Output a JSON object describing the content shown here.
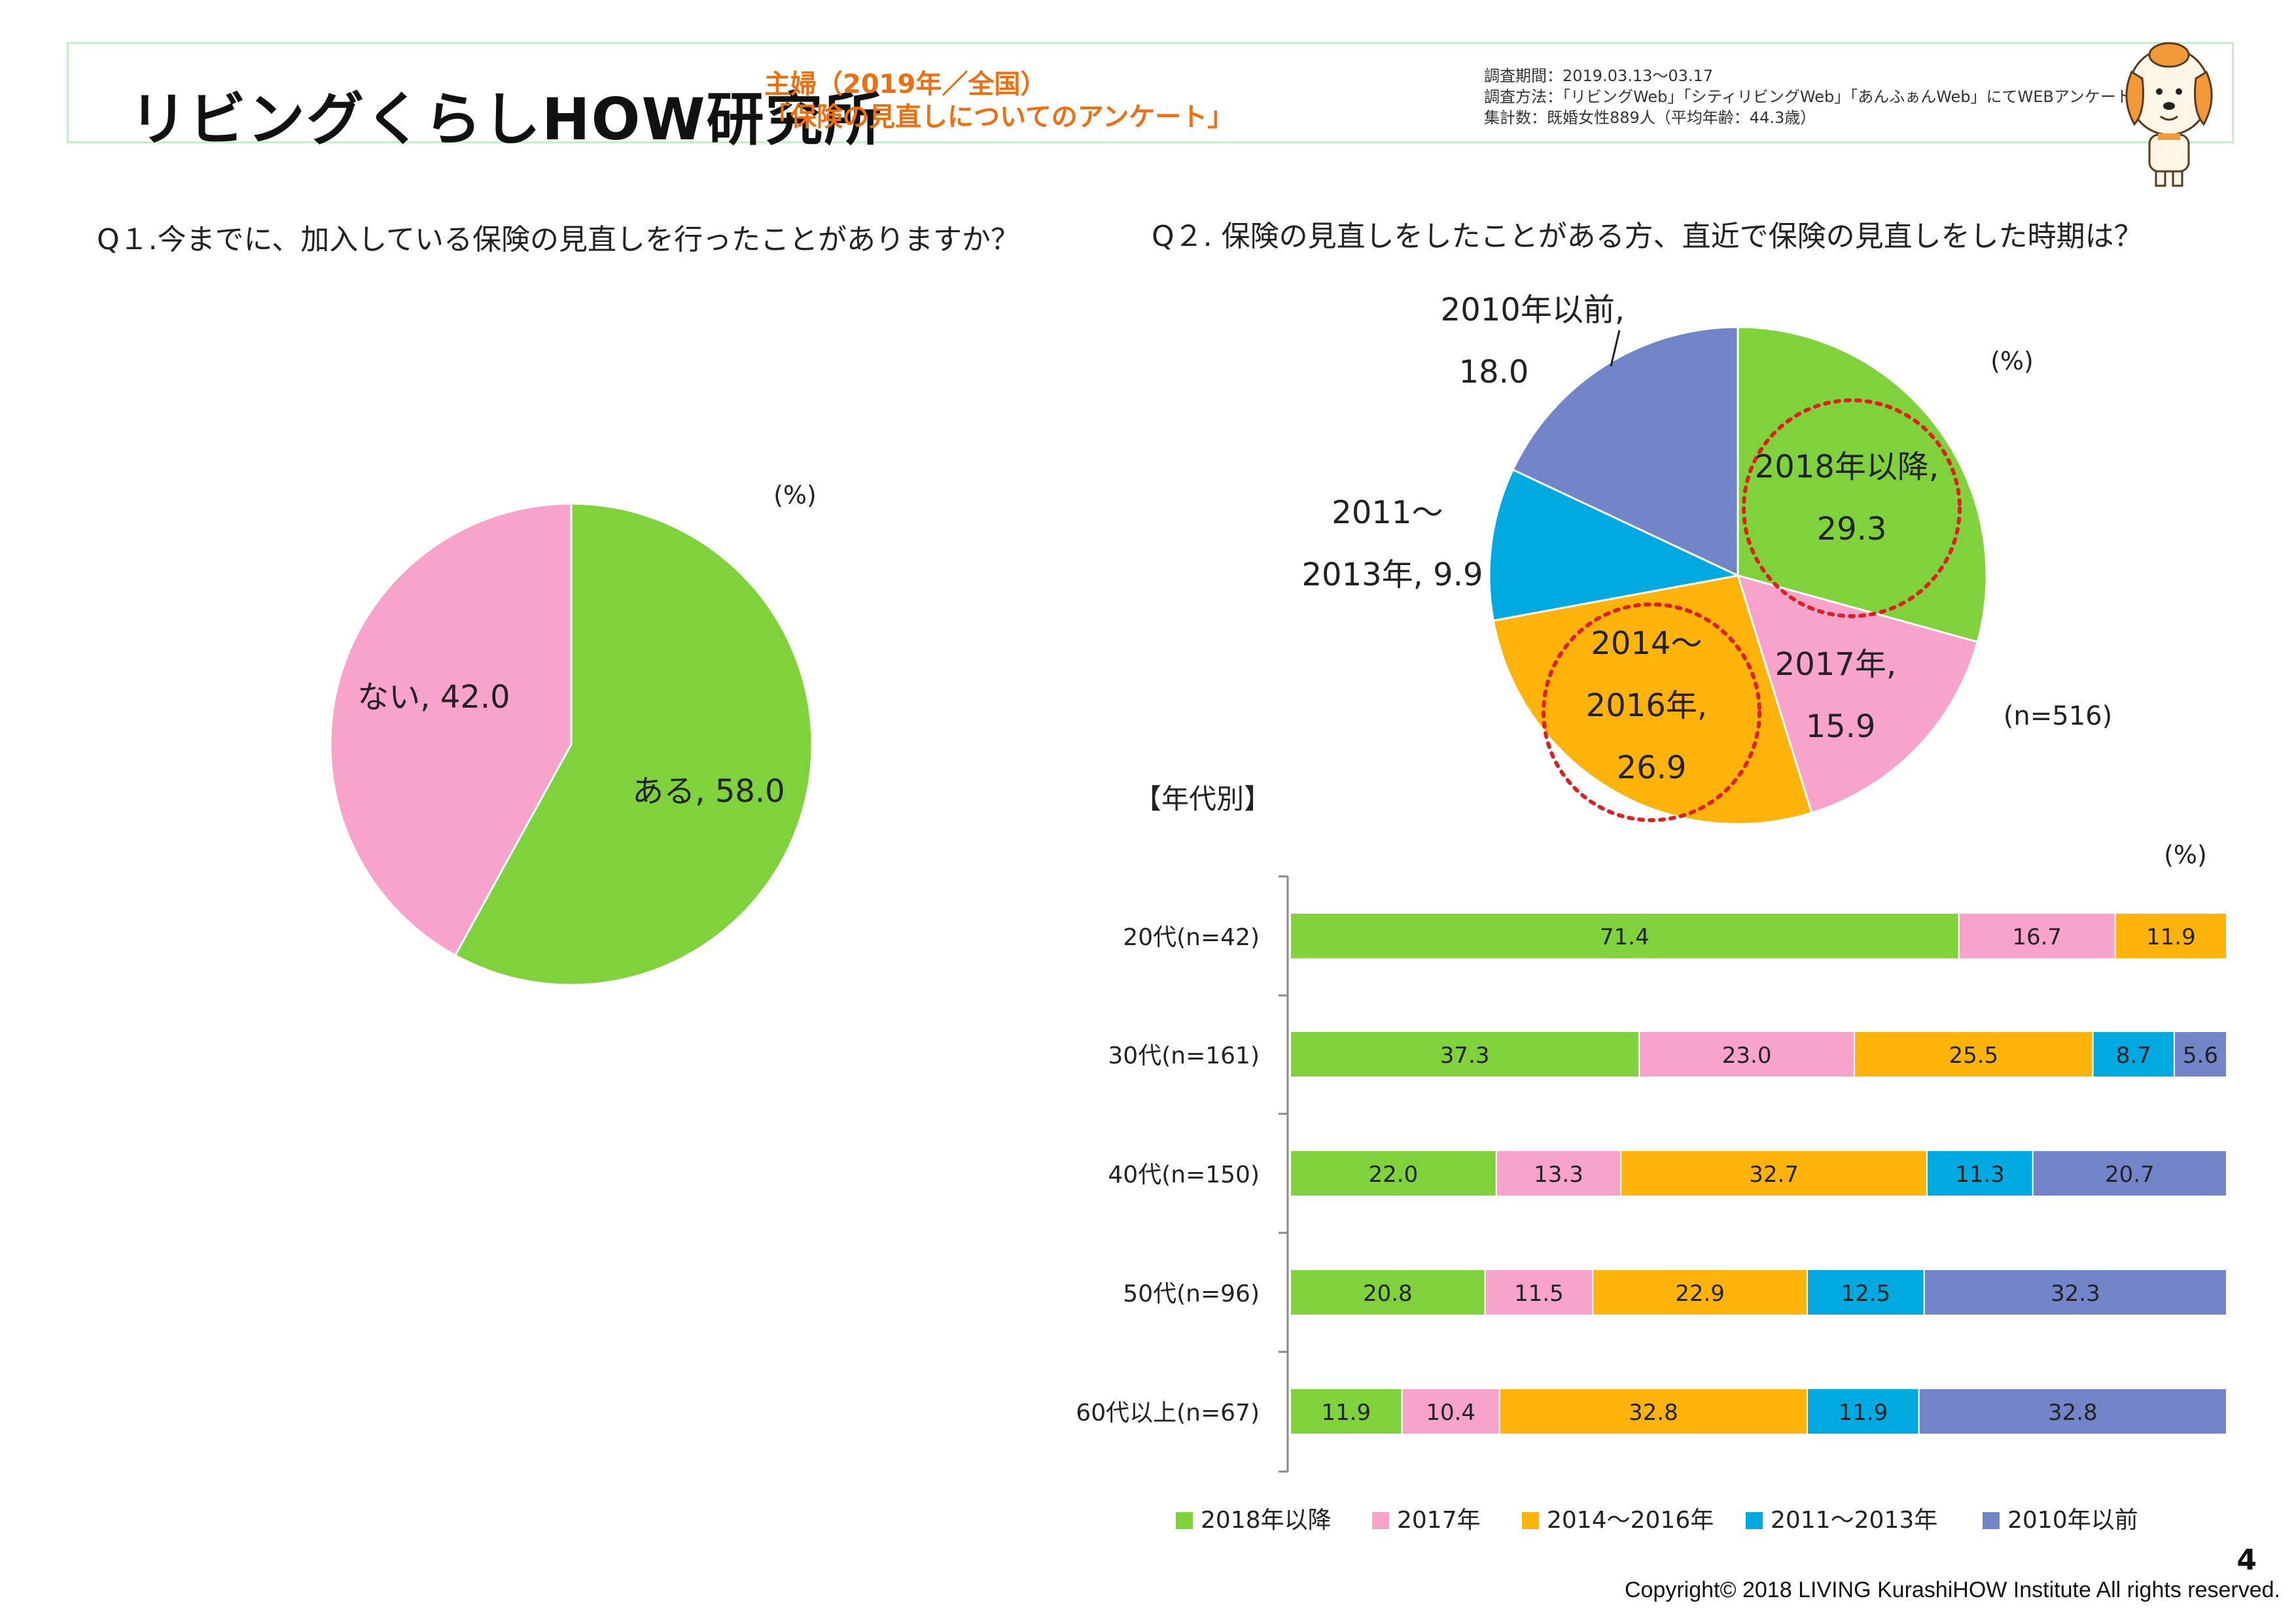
{
  "header": {
    "logo_text": "リビングくらしHOW研究所",
    "subtitle_line1": "主婦（2019年／全国）",
    "subtitle_line2": "「保険の見直しについてのアンケート」",
    "meta": [
      "調査期間：2019.03.13〜03.17",
      "調査方法：「リビングWeb」「シティリビングWeb」「あんふぁんWeb」にてWEBアンケート",
      "集計数：既婚女性889人（平均年齢：44.3歳）"
    ]
  },
  "q1": {
    "title": "Q１.今までに、加入している保険の見直しを行ったことがありますか？",
    "unit": "(%)"
  },
  "q2": {
    "title": "Q２. 保険の見直しをしたことがある方、直近で保険の見直しをした時期は？",
    "unit": "(%)",
    "n": "(n=516)"
  },
  "bar": {
    "section_title": "【年代別】",
    "unit": "(%)"
  },
  "colors": {
    "green": "#7fd23c",
    "pink": "#f7a3cb",
    "orange": "#ffb30b",
    "cyan": "#00a9df",
    "blue": "#7285c8",
    "circle": "#e0201f"
  },
  "chart_data": [
    {
      "type": "pie",
      "slices": [
        {
          "label": "ある",
          "value": 58.0,
          "label_text": "ある, 58.0",
          "color": "#7fd23c"
        },
        {
          "label": "ない",
          "value": 42.0,
          "label_text": "ない, 42.0",
          "color": "#f7a3cb"
        }
      ]
    },
    {
      "type": "pie",
      "slices": [
        {
          "label": "2018年以降",
          "value": 29.3,
          "label_lines": [
            "2018年以降,",
            "29.3"
          ],
          "color": "#7fd23c"
        },
        {
          "label": "2017年",
          "value": 15.9,
          "label_lines": [
            "2017年,",
            "15.9"
          ],
          "color": "#f7a3cb"
        },
        {
          "label": "2014〜2016年",
          "value": 26.9,
          "label_lines": [
            "2014〜",
            "2016年,",
            "26.9"
          ],
          "color": "#ffb30b"
        },
        {
          "label": "2011〜2013年",
          "value": 9.9,
          "label_lines": [
            "2011〜",
            "2013年, 9.9"
          ],
          "color": "#00a9df"
        },
        {
          "label": "2010年以前",
          "value": 18.0,
          "label_lines": [
            "2010年以前,",
            "18.0"
          ],
          "color": "#7285c8"
        }
      ]
    },
    {
      "type": "bar",
      "orientation": "horizontal-stacked-100",
      "categories": [
        "20代(n=42)",
        "30代(n=161)",
        "40代(n=150)",
        "50代(n=96)",
        "60代以上(n=67)"
      ],
      "series": [
        {
          "name": "2018年以降",
          "color": "#7fd23c",
          "values": [
            71.4,
            37.3,
            22.0,
            20.8,
            11.9
          ]
        },
        {
          "name": "2017年",
          "color": "#f7a3cb",
          "values": [
            16.7,
            23.0,
            13.3,
            11.5,
            10.4
          ]
        },
        {
          "name": "2014〜2016年",
          "color": "#ffb30b",
          "values": [
            11.9,
            25.5,
            32.7,
            22.9,
            32.8
          ]
        },
        {
          "name": "2011〜2013年",
          "color": "#00a9df",
          "values": [
            0,
            8.7,
            11.3,
            12.5,
            11.9
          ]
        },
        {
          "name": "2010年以前",
          "color": "#7285c8",
          "values": [
            0,
            5.6,
            20.7,
            32.3,
            32.8
          ]
        }
      ],
      "legend_position": "bottom"
    }
  ],
  "footer": {
    "page": "4",
    "copyright": "Copyright© 2018 LIVING KurashiHOW Institute All rights reserved."
  }
}
